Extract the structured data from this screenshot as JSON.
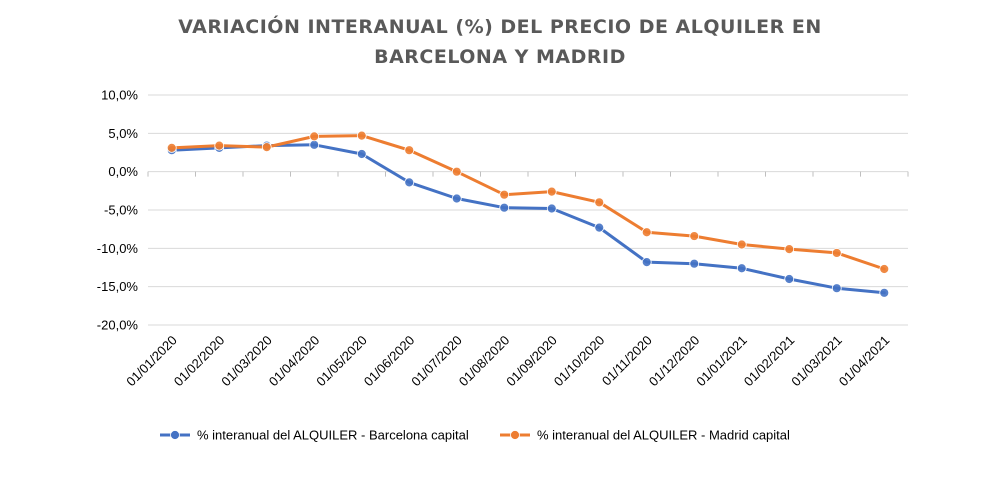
{
  "chart_data": {
    "type": "line",
    "title_line1": "VARIACIÓN INTERANUAL (%) DEL PRECIO DE ALQUILER EN",
    "title_line2": "BARCELONA Y MADRID",
    "xlabel": "",
    "ylabel": "",
    "categories": [
      "01/01/2020",
      "01/02/2020",
      "01/03/2020",
      "01/04/2020",
      "01/05/2020",
      "01/06/2020",
      "01/07/2020",
      "01/08/2020",
      "01/09/2020",
      "01/10/2020",
      "01/11/2020",
      "01/12/2020",
      "01/01/2021",
      "01/02/2021",
      "01/03/2021",
      "01/04/2021"
    ],
    "y_ticks": [
      10,
      5,
      0,
      -5,
      -10,
      -15,
      -20
    ],
    "y_tick_labels": [
      "10,0%",
      "5,0%",
      "0,0%",
      "-5,0%",
      "-10,0%",
      "-15,0%",
      "-20,0%"
    ],
    "ylim": [
      -20,
      10
    ],
    "grid": true,
    "legend_position": "bottom",
    "series": [
      {
        "name": "% interanual del ALQUILER - Barcelona capital",
        "color": "#4472C4",
        "values": [
          2.8,
          3.1,
          3.4,
          3.5,
          2.3,
          -1.4,
          -3.5,
          -4.7,
          -4.8,
          -7.3,
          -11.8,
          -12.0,
          -12.6,
          -14.0,
          -15.2,
          -15.8
        ]
      },
      {
        "name": "% interanual del ALQUILER - Madrid capital",
        "color": "#ED7D31",
        "values": [
          3.1,
          3.4,
          3.2,
          4.6,
          4.7,
          2.8,
          0.0,
          -3.0,
          -2.6,
          -4.0,
          -7.9,
          -8.4,
          -9.5,
          -10.1,
          -10.6,
          -12.7
        ]
      }
    ]
  }
}
